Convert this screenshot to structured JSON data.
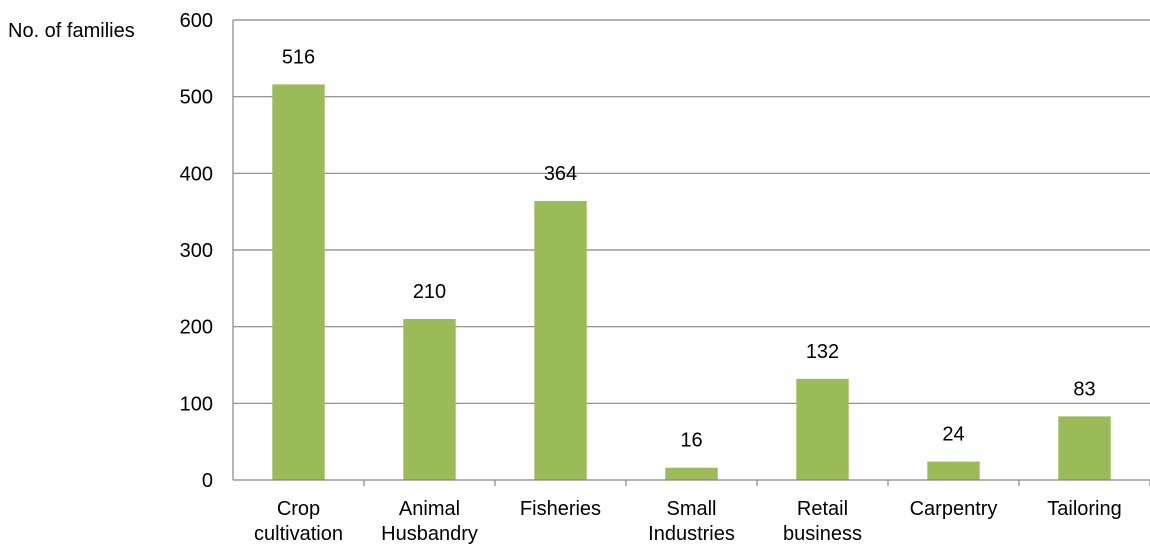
{
  "chart_data": {
    "type": "bar",
    "title": "",
    "xlabel": "",
    "ylabel": "No. of families",
    "categories": [
      [
        "Crop",
        "cultivation"
      ],
      [
        "Animal",
        "Husbandry"
      ],
      [
        "Fisheries"
      ],
      [
        "Small",
        "Industries"
      ],
      [
        "Retail",
        "business"
      ],
      [
        "Carpentry"
      ],
      [
        "Tailoring"
      ]
    ],
    "values": [
      516,
      210,
      364,
      16,
      132,
      24,
      83
    ],
    "ylim": [
      0,
      600
    ],
    "yticks": [
      0,
      100,
      200,
      300,
      400,
      500,
      600
    ],
    "grid": true,
    "bar_color": "#9bbb59",
    "gridline_color": "#868686",
    "data_labels": true
  }
}
